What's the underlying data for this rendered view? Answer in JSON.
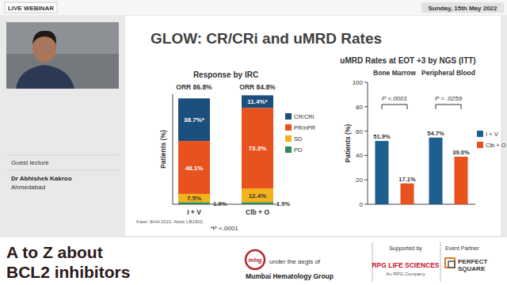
{
  "header": {
    "badge": "LIVE WEBINAR",
    "date": "Sunday, 15th May 2022"
  },
  "speaker": {
    "role": "Guest lecture",
    "name": "Dr Abhishek Kakroo",
    "city": "Ahmedabad"
  },
  "slide": {
    "title": "GLOW: CR/CRi and uMRD Rates",
    "source": "Kater. EHA 2021. Abstr LB1902."
  },
  "chart_data": [
    {
      "type": "bar",
      "stacked": true,
      "title": "Response by IRC",
      "y_label": "Patients (%)",
      "categories": [
        "I + V",
        "Clb + O"
      ],
      "series": [
        {
          "name": "PD",
          "color": "#2e8b57",
          "values": [
            1.9,
            1.9
          ],
          "value_labels": [
            "1.9%",
            "1.9%"
          ]
        },
        {
          "name": "SD",
          "color": "#f2b21b",
          "values": [
            7.5,
            12.4
          ],
          "value_labels": [
            "7.5%",
            "12.4%"
          ]
        },
        {
          "name": "PR/nPR",
          "color": "#e8521e",
          "values": [
            48.1,
            73.3
          ],
          "value_labels": [
            "48.1%",
            "73.3%"
          ]
        },
        {
          "name": "CR/CRi",
          "color": "#1d4f7c",
          "values": [
            38.7,
            11.4
          ],
          "value_labels": [
            "38.7%*",
            "11.4%*"
          ]
        }
      ],
      "annotations": [
        "ORR 86.8%",
        "ORR 84.8%"
      ],
      "note": "*P <.0001",
      "ylim": [
        0,
        100
      ],
      "tick_labels": "x",
      "data_labels": true,
      "legend": "right"
    },
    {
      "type": "bar",
      "title": "uMRD Rates at EOT +3 by NGS (ITT)",
      "y_label": "Patients (%)",
      "categories": [
        "Bone Marrow",
        "Peripheral Blood"
      ],
      "series": [
        {
          "name": "I + V",
          "color": "#1d5f8e",
          "values": [
            51.9,
            54.7
          ],
          "value_labels": [
            "51.9%",
            "54.7%"
          ]
        },
        {
          "name": "Clb + O",
          "color": "#e8521e",
          "values": [
            17.1,
            39.0
          ],
          "value_labels": [
            "17.1%",
            "39.0%"
          ]
        }
      ],
      "annotations": [
        "P <.0001",
        "P = .0259"
      ],
      "ylim": [
        0,
        100
      ],
      "yticks": [
        0,
        20,
        40,
        60,
        80,
        100
      ],
      "data_labels": true,
      "legend": "right"
    }
  ],
  "footer": {
    "title": [
      "A to Z about",
      "BCL2 inhibitors"
    ],
    "logo": "mhg",
    "aegis": "under the aegis of",
    "group": "Mumbai Hematology Group",
    "supported": "Supported by",
    "sponsor": "RPG LIFE SCIENCES",
    "sponsor_sub": "An RPG Company",
    "partner_label": "Event Partner",
    "partner": [
      "PERFECT",
      "SQUARE"
    ]
  }
}
